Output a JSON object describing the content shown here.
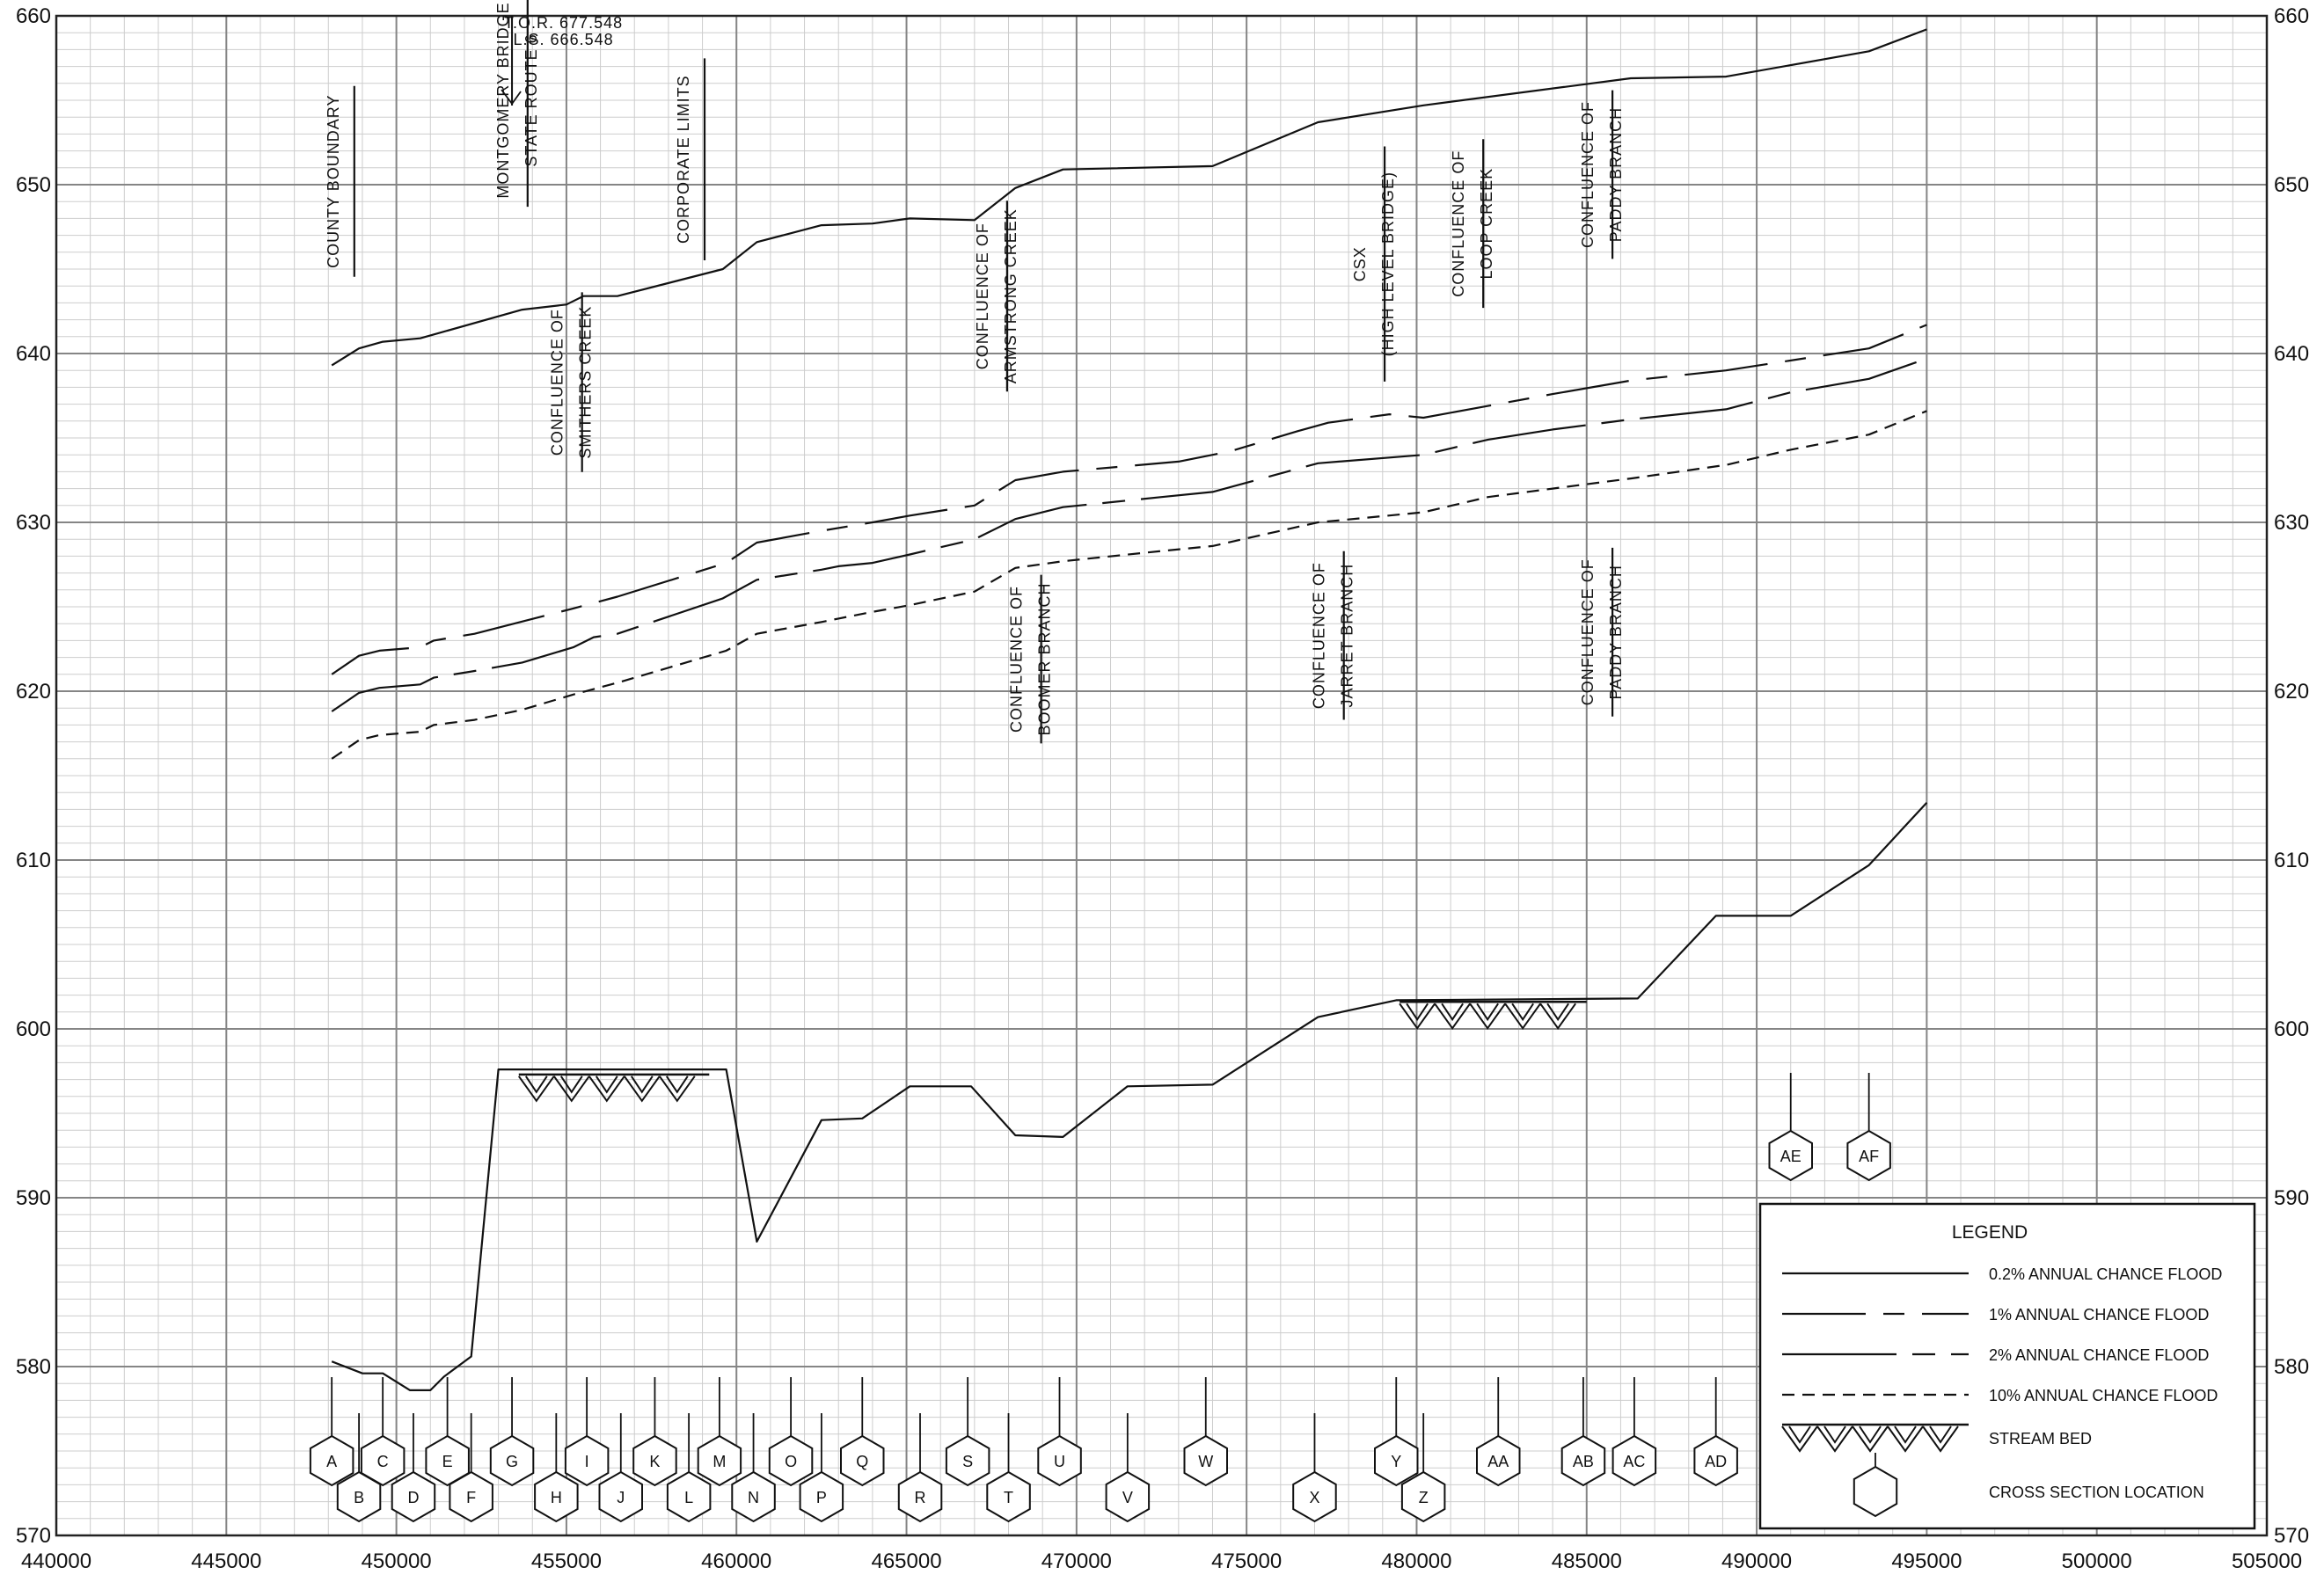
{
  "chart_data": {
    "type": "line",
    "title": "",
    "xlabel": "",
    "ylabel": "",
    "xlim": [
      440000,
      505000
    ],
    "ylim": [
      570,
      660
    ],
    "x_ticks": [
      "440000",
      "445000",
      "450000",
      "455000",
      "460000",
      "465000",
      "470000",
      "475000",
      "480000",
      "485000",
      "490000",
      "495000",
      "500000",
      "505000"
    ],
    "y_ticks": [
      "570",
      "580",
      "590",
      "600",
      "610",
      "620",
      "630",
      "640",
      "650",
      "660"
    ],
    "grid": true,
    "legend_position": "bottom-right",
    "series": [
      {
        "key": "p02",
        "name": "0.2% ANNUAL CHANCE FLOOD",
        "style": "solid",
        "points": [
          [
            448100,
            639.3
          ],
          [
            448900,
            640.3
          ],
          [
            449600,
            640.7
          ],
          [
            450700,
            640.9
          ],
          [
            453700,
            642.6
          ],
          [
            455000,
            642.9
          ],
          [
            455500,
            643.4
          ],
          [
            456500,
            643.4
          ],
          [
            459600,
            645.0
          ],
          [
            460600,
            646.6
          ],
          [
            462500,
            647.6
          ],
          [
            464000,
            647.7
          ],
          [
            465100,
            648.0
          ],
          [
            467000,
            647.9
          ],
          [
            468200,
            649.8
          ],
          [
            469600,
            650.9
          ],
          [
            474000,
            651.1
          ],
          [
            477100,
            653.7
          ],
          [
            480200,
            654.7
          ],
          [
            486300,
            656.3
          ],
          [
            489100,
            656.4
          ],
          [
            493300,
            657.9
          ],
          [
            495000,
            659.2
          ]
        ]
      },
      {
        "key": "p1",
        "name": "1% ANNUAL CHANCE FLOOD",
        "style": "dashdot",
        "points": [
          [
            448100,
            621.0
          ],
          [
            448900,
            622.1
          ],
          [
            449500,
            622.4
          ],
          [
            450700,
            622.6
          ],
          [
            451100,
            623.0
          ],
          [
            452300,
            623.4
          ],
          [
            455200,
            624.9
          ],
          [
            456500,
            625.6
          ],
          [
            459700,
            627.6
          ],
          [
            460600,
            628.8
          ],
          [
            462500,
            629.5
          ],
          [
            464000,
            630.0
          ],
          [
            465100,
            630.4
          ],
          [
            467000,
            631.0
          ],
          [
            468200,
            632.5
          ],
          [
            469600,
            633.0
          ],
          [
            473000,
            633.6
          ],
          [
            474500,
            634.2
          ],
          [
            476500,
            635.4
          ],
          [
            477400,
            635.9
          ],
          [
            479200,
            636.4
          ],
          [
            480200,
            636.2
          ],
          [
            484000,
            637.6
          ],
          [
            486300,
            638.4
          ],
          [
            489100,
            639.0
          ],
          [
            493300,
            640.3
          ],
          [
            495000,
            641.7
          ]
        ]
      },
      {
        "key": "p2",
        "name": "2% ANNUAL CHANCE FLOOD",
        "style": "longdash",
        "points": [
          [
            448100,
            618.8
          ],
          [
            448900,
            619.9
          ],
          [
            449500,
            620.2
          ],
          [
            450700,
            620.4
          ],
          [
            451100,
            620.8
          ],
          [
            452300,
            621.2
          ],
          [
            453700,
            621.7
          ],
          [
            455200,
            622.6
          ],
          [
            455800,
            623.2
          ],
          [
            456500,
            623.4
          ],
          [
            459600,
            625.5
          ],
          [
            460600,
            626.6
          ],
          [
            462500,
            627.2
          ],
          [
            463000,
            627.4
          ],
          [
            464000,
            627.6
          ],
          [
            465100,
            628.1
          ],
          [
            467000,
            629.0
          ],
          [
            468200,
            630.2
          ],
          [
            469600,
            630.9
          ],
          [
            472500,
            631.5
          ],
          [
            474000,
            631.8
          ],
          [
            477100,
            633.5
          ],
          [
            480200,
            634.0
          ],
          [
            482100,
            634.9
          ],
          [
            484000,
            635.5
          ],
          [
            486300,
            636.1
          ],
          [
            489100,
            636.7
          ],
          [
            491000,
            637.7
          ],
          [
            493300,
            638.5
          ],
          [
            495000,
            639.7
          ]
        ]
      },
      {
        "key": "p10",
        "name": "10% ANNUAL CHANCE FLOOD",
        "style": "dashed",
        "points": [
          [
            448100,
            616.0
          ],
          [
            448900,
            617.1
          ],
          [
            449500,
            617.4
          ],
          [
            450700,
            617.6
          ],
          [
            451100,
            618.0
          ],
          [
            452300,
            618.3
          ],
          [
            453700,
            618.9
          ],
          [
            455200,
            619.8
          ],
          [
            456500,
            620.5
          ],
          [
            459700,
            622.4
          ],
          [
            460600,
            623.4
          ],
          [
            462500,
            624.1
          ],
          [
            463000,
            624.3
          ],
          [
            464000,
            624.7
          ],
          [
            465100,
            625.1
          ],
          [
            467000,
            625.9
          ],
          [
            468200,
            627.3
          ],
          [
            469600,
            627.7
          ],
          [
            472500,
            628.3
          ],
          [
            474000,
            628.6
          ],
          [
            477100,
            630.0
          ],
          [
            480200,
            630.6
          ],
          [
            482100,
            631.5
          ],
          [
            484000,
            632.0
          ],
          [
            486300,
            632.6
          ],
          [
            489100,
            633.4
          ],
          [
            491000,
            634.3
          ],
          [
            493300,
            635.2
          ],
          [
            495000,
            636.6
          ]
        ]
      },
      {
        "key": "bed",
        "name": "STREAM BED",
        "style": "solid",
        "points": [
          [
            448100,
            580.3
          ],
          [
            449000,
            579.6
          ],
          [
            449600,
            579.6
          ],
          [
            450400,
            578.6
          ],
          [
            451000,
            578.6
          ],
          [
            451400,
            579.4
          ],
          [
            452200,
            580.6
          ],
          [
            453000,
            597.6
          ],
          [
            459700,
            597.6
          ],
          [
            460600,
            587.4
          ],
          [
            462500,
            594.6
          ],
          [
            463700,
            594.7
          ],
          [
            465100,
            596.6
          ],
          [
            466900,
            596.6
          ],
          [
            468200,
            593.7
          ],
          [
            469600,
            593.6
          ],
          [
            471500,
            596.6
          ],
          [
            474000,
            596.7
          ],
          [
            477100,
            600.7
          ],
          [
            479400,
            601.7
          ],
          [
            486500,
            601.8
          ],
          [
            488800,
            606.7
          ],
          [
            491000,
            606.7
          ],
          [
            493300,
            609.7
          ],
          [
            495000,
            613.4
          ]
        ]
      }
    ],
    "stream_bed_hatch": [
      {
        "x0": 453600,
        "x1": 459200,
        "y": 597.3
      },
      {
        "x0": 479500,
        "x1": 485000,
        "y": 601.6
      }
    ],
    "cross_sections": [
      {
        "label": "A",
        "x": 448100,
        "row": "up"
      },
      {
        "label": "B",
        "x": 448900,
        "row": "down"
      },
      {
        "label": "C",
        "x": 449600,
        "row": "up"
      },
      {
        "label": "D",
        "x": 450500,
        "row": "down"
      },
      {
        "label": "E",
        "x": 451500,
        "row": "up"
      },
      {
        "label": "F",
        "x": 452200,
        "row": "down"
      },
      {
        "label": "G",
        "x": 453400,
        "row": "up"
      },
      {
        "label": "H",
        "x": 454700,
        "row": "down"
      },
      {
        "label": "I",
        "x": 455600,
        "row": "up"
      },
      {
        "label": "J",
        "x": 456600,
        "row": "down"
      },
      {
        "label": "K",
        "x": 457600,
        "row": "up"
      },
      {
        "label": "L",
        "x": 458600,
        "row": "down"
      },
      {
        "label": "M",
        "x": 459500,
        "row": "up"
      },
      {
        "label": "N",
        "x": 460500,
        "row": "down"
      },
      {
        "label": "O",
        "x": 461600,
        "row": "up"
      },
      {
        "label": "P",
        "x": 462500,
        "row": "down"
      },
      {
        "label": "Q",
        "x": 463700,
        "row": "up"
      },
      {
        "label": "R",
        "x": 465400,
        "row": "down"
      },
      {
        "label": "S",
        "x": 466800,
        "row": "up"
      },
      {
        "label": "T",
        "x": 468000,
        "row": "down"
      },
      {
        "label": "U",
        "x": 469500,
        "row": "up"
      },
      {
        "label": "V",
        "x": 471500,
        "row": "down"
      },
      {
        "label": "W",
        "x": 473800,
        "row": "up"
      },
      {
        "label": "X",
        "x": 477000,
        "row": "down"
      },
      {
        "label": "Y",
        "x": 479400,
        "row": "up"
      },
      {
        "label": "Z",
        "x": 480200,
        "row": "down"
      },
      {
        "label": "AA",
        "x": 482400,
        "row": "up"
      },
      {
        "label": "AB",
        "x": 484900,
        "row": "up"
      },
      {
        "label": "AC",
        "x": 486400,
        "row": "up"
      },
      {
        "label": "AD",
        "x": 488800,
        "row": "up"
      },
      {
        "label": "AE",
        "x": 491000,
        "row": "high"
      },
      {
        "label": "AF",
        "x": 493300,
        "row": "high"
      }
    ],
    "annotations": [
      {
        "x": 448400,
        "y": 650.2,
        "lines": [
          "COUNTY BOUNDARY"
        ],
        "bar": true
      },
      {
        "x": 453600,
        "y": 655.0,
        "lines": [
          "MONTGOMERY BRIDGE",
          "STATE ROUTE 6"
        ],
        "bar": true
      },
      {
        "x": 458700,
        "y": 651.5,
        "lines": [
          "CORPORATE LIMITS"
        ],
        "bar": true
      },
      {
        "x": 455200,
        "y": 638.3,
        "lines": [
          "CONFLUENCE OF",
          "SMITHERS CREEK"
        ],
        "bar": true
      },
      {
        "x": 467700,
        "y": 643.4,
        "lines": [
          "CONFLUENCE OF",
          "ARMSTRONG CREEK"
        ],
        "bar": true
      },
      {
        "x": 478800,
        "y": 645.3,
        "lines": [
          "CSX",
          "(HIGH LEVEL BRIDGE)"
        ],
        "bar": true
      },
      {
        "x": 481700,
        "y": 647.7,
        "lines": [
          "CONFLUENCE OF",
          "LOOP CREEK"
        ],
        "bar": true
      },
      {
        "x": 485500,
        "y": 650.6,
        "lines": [
          "CONFLUENCE OF",
          "PADDY BRANCH"
        ],
        "bar": true
      },
      {
        "x": 468700,
        "y": 621.9,
        "lines": [
          "CONFLUENCE OF",
          "BOOMER BRANCH"
        ],
        "bar": true
      },
      {
        "x": 477600,
        "y": 623.3,
        "lines": [
          "CONFLUENCE OF",
          "JARRET BRANCH"
        ],
        "bar": true
      },
      {
        "x": 485500,
        "y": 623.5,
        "lines": [
          "CONFLUENCE OF",
          "PADDY BRANCH"
        ],
        "bar": true
      }
    ],
    "tor_note": {
      "x": 456000,
      "tor": "T.O.R.   677.548",
      "ls": "L.S.    666.548"
    },
    "legend": {
      "title": "LEGEND",
      "items": [
        {
          "label": "0.2% ANNUAL CHANCE FLOOD",
          "style": "solid"
        },
        {
          "label": "1% ANNUAL CHANCE FLOOD",
          "style": "dashdot"
        },
        {
          "label": "2% ANNUAL CHANCE FLOOD",
          "style": "longdash"
        },
        {
          "label": "10% ANNUAL CHANCE FLOOD",
          "style": "dashed"
        },
        {
          "label": "STREAM BED",
          "style": "hatch"
        },
        {
          "label": "CROSS SECTION LOCATION",
          "style": "hexagon"
        }
      ]
    }
  }
}
